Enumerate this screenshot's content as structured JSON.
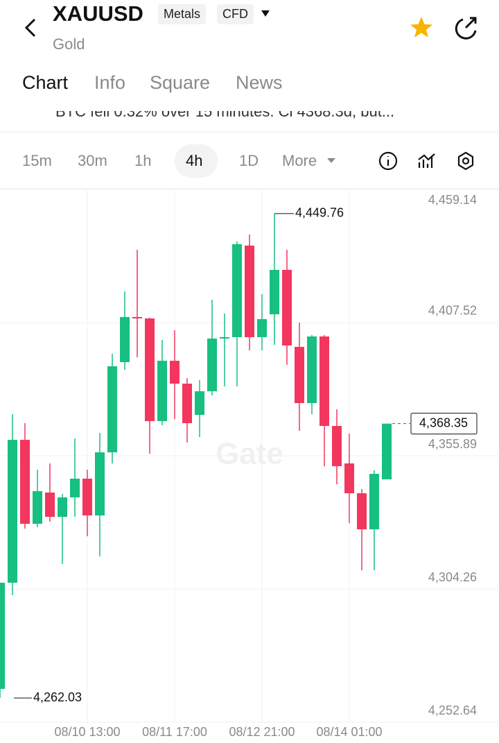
{
  "header": {
    "symbol": "XAUUSD",
    "badges": [
      "Metals",
      "CFD"
    ],
    "subtitle": "Gold"
  },
  "tabs": [
    "Chart",
    "Info",
    "Square",
    "News"
  ],
  "ticker": "BTC fell 0.32% over 15 minutes. Cl 4368.3d, but...",
  "timeframes": [
    "15m",
    "30m",
    "1h",
    "4h",
    "1D",
    "More"
  ],
  "selected_timeframe": "4h",
  "chart_data": {
    "type": "candlestick",
    "categories": [
      null,
      null,
      null,
      null,
      null,
      null,
      null,
      "08/10 13:00",
      null,
      null,
      null,
      null,
      null,
      null,
      "08/11 17:00",
      null,
      null,
      null,
      null,
      null,
      null,
      "08/12 21:00",
      null,
      null,
      null,
      null,
      null,
      null,
      "08/14 01:00",
      null,
      null,
      null
    ],
    "open": [
      4265.55,
      4306.69,
      4362.07,
      4329.54,
      4341.64,
      4332.23,
      4339.76,
      4347.02,
      4332.77,
      4357.23,
      4392.19,
      4409.67,
      4409.13,
      4369.33,
      4392.73,
      4383.85,
      4371.75,
      4380.9,
      4401.33,
      4401.87,
      4437.36,
      4401.87,
      4410.74,
      4427.95,
      4398.1,
      4376.32,
      4402.14,
      4367.45,
      4352.93,
      4341.37,
      4327.39,
      4346.75
    ],
    "high": [
      4306.69,
      4372.02,
      4368.53,
      4350.51,
      4352.93,
      4341.1,
      4362.61,
      4350.51,
      4364.76,
      4395.42,
      4419.61,
      4435.75,
      4409.4,
      4400.79,
      4404.56,
      4386.0,
      4385.2,
      4416.39,
      4411.01,
      4438.97,
      4441.66,
      4418.54,
      4449.76,
      4435.75,
      4407.52,
      4402.68,
      4402.68,
      4373.9,
      4364.49,
      4342.98,
      4350.24,
      4368.35
    ],
    "low": [
      4262.03,
      4301.85,
      4327.66,
      4328.2,
      4330.35,
      4313.94,
      4332.23,
      4324.7,
      4316.9,
      4352.93,
      4389.23,
      4394.07,
      4356.7,
      4367.72,
      4370.14,
      4361.0,
      4363.15,
      4379.28,
      4382.78,
      4382.78,
      4396.76,
      4396.76,
      4398.91,
      4391.11,
      4365.57,
      4372.02,
      4351.86,
      4344.87,
      4329.81,
      4311.52,
      4311.52,
      4346.75
    ],
    "close": [
      4306.69,
      4362.07,
      4329.54,
      4342.18,
      4332.23,
      4339.76,
      4347.02,
      4332.77,
      4357.23,
      4390.58,
      4409.67,
      4409.13,
      4369.33,
      4392.73,
      4383.85,
      4368.53,
      4380.9,
      4401.33,
      4401.87,
      4437.9,
      4401.87,
      4408.86,
      4427.95,
      4398.64,
      4376.32,
      4402.14,
      4367.45,
      4351.86,
      4341.37,
      4327.39,
      4348.9,
      4368.35
    ],
    "up_color": "#17bf80",
    "down_color": "#f2365e",
    "ylim": [
      4252.64,
      4459.14
    ],
    "yticks": [
      {
        "value": 4459.14,
        "label": "4,459.14"
      },
      {
        "value": 4407.52,
        "label": "4,407.52"
      },
      {
        "value": 4355.89,
        "label": "4,355.89"
      },
      {
        "value": 4304.26,
        "label": "4,304.26"
      },
      {
        "value": 4252.64,
        "label": "4,252.64"
      }
    ],
    "grid": true,
    "high_label": {
      "value": 4449.76,
      "label": "4,449.76"
    },
    "low_label": {
      "value": 4262.03,
      "label": "4,262.03"
    },
    "last_price": {
      "value": 4368.35,
      "label": "4,368.35"
    },
    "watermark": "Gate"
  }
}
